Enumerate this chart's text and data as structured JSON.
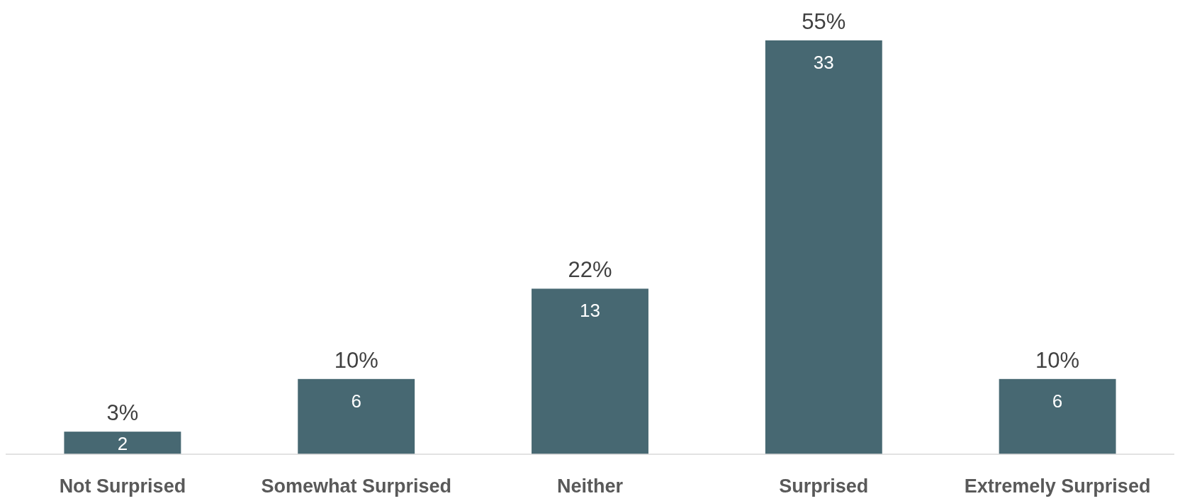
{
  "chart_data": {
    "type": "bar",
    "categories": [
      "Not Surprised",
      "Somewhat Surprised",
      "Neither",
      "Surprised",
      "Extremely Surprised"
    ],
    "values": [
      3,
      10,
      22,
      55,
      10
    ],
    "color": "#476872",
    "value_labels": [
      "3%",
      "10%",
      "22%",
      "55%",
      "10%"
    ],
    "annotations": [
      {
        "text": "2",
        "x": "Not Surprised",
        "y": 3
      },
      {
        "text": "6",
        "x": "Somewhat Surprised",
        "y": 10
      },
      {
        "text": "13",
        "x": "Neither",
        "y": 22
      },
      {
        "text": "33",
        "x": "Surprised",
        "y": 55
      },
      {
        "text": "6",
        "x": "Extremely Surprised",
        "y": 10
      }
    ]
  }
}
